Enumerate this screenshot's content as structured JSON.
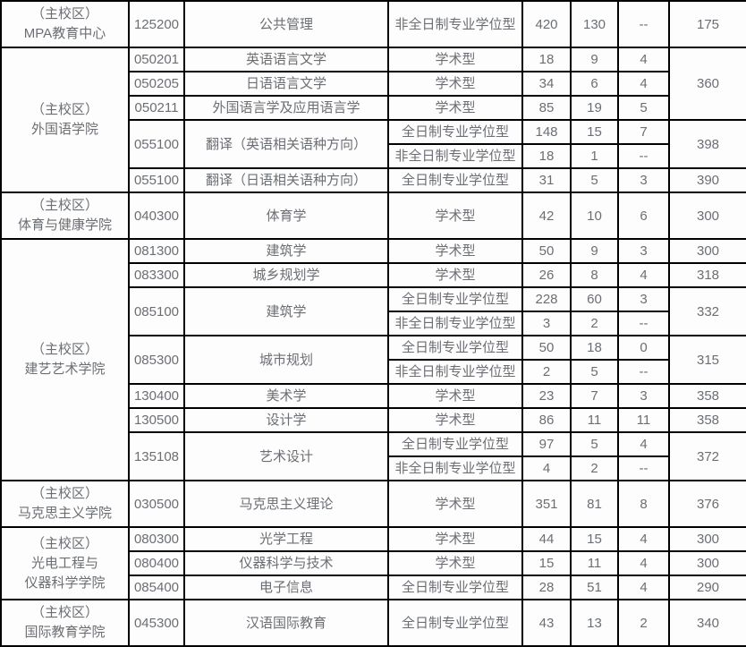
{
  "theme": {
    "text_color": "#6b6e73",
    "border_color": "#000000",
    "background": "#fdfdfd"
  },
  "table": {
    "rows": [
      [
        {
          "t": "college",
          "v": "（主校区）\nMPA教育中心"
        },
        {
          "t": "code",
          "v": "125200"
        },
        {
          "t": "major",
          "v": "公共管理"
        },
        {
          "t": "program",
          "v": "非全日制专业学位型"
        },
        {
          "t": "stat",
          "v": "420"
        },
        {
          "t": "stat",
          "v": "130"
        },
        {
          "t": "stat",
          "v": "--"
        },
        {
          "t": "score",
          "v": "175"
        }
      ],
      [
        {
          "t": "college",
          "v": "（主校区）\n外国语学院",
          "rs": 6
        },
        {
          "t": "code",
          "v": "050201"
        },
        {
          "t": "major",
          "v": "英语语言文学"
        },
        {
          "t": "program",
          "v": "学术型"
        },
        {
          "t": "stat",
          "v": "18"
        },
        {
          "t": "stat",
          "v": "9"
        },
        {
          "t": "stat",
          "v": "4"
        },
        {
          "t": "score",
          "v": "360",
          "rs": 3
        }
      ],
      [
        {
          "t": "code",
          "v": "050205"
        },
        {
          "t": "major",
          "v": "日语语言文学"
        },
        {
          "t": "program",
          "v": "学术型"
        },
        {
          "t": "stat",
          "v": "34"
        },
        {
          "t": "stat",
          "v": "6"
        },
        {
          "t": "stat",
          "v": "4"
        }
      ],
      [
        {
          "t": "code",
          "v": "050211"
        },
        {
          "t": "major",
          "v": "外国语言学及应用语言学"
        },
        {
          "t": "program",
          "v": "学术型"
        },
        {
          "t": "stat",
          "v": "85"
        },
        {
          "t": "stat",
          "v": "19"
        },
        {
          "t": "stat",
          "v": "5"
        }
      ],
      [
        {
          "t": "code",
          "v": "055100",
          "rs": 2
        },
        {
          "t": "major",
          "v": "翻译（英语相关语种方向）",
          "rs": 2
        },
        {
          "t": "program",
          "v": "全日制专业学位型"
        },
        {
          "t": "stat",
          "v": "148"
        },
        {
          "t": "stat",
          "v": "15"
        },
        {
          "t": "stat",
          "v": "7"
        },
        {
          "t": "score",
          "v": "398",
          "rs": 2
        }
      ],
      [
        {
          "t": "program",
          "v": "非全日制专业学位型"
        },
        {
          "t": "stat",
          "v": "18"
        },
        {
          "t": "stat",
          "v": "1"
        },
        {
          "t": "stat",
          "v": "--"
        }
      ],
      [
        {
          "t": "code",
          "v": "055100"
        },
        {
          "t": "major",
          "v": "翻译（日语相关语种方向）"
        },
        {
          "t": "program",
          "v": "全日制专业学位型"
        },
        {
          "t": "stat",
          "v": "31"
        },
        {
          "t": "stat",
          "v": "5"
        },
        {
          "t": "stat",
          "v": "3"
        },
        {
          "t": "score",
          "v": "390"
        }
      ],
      [
        {
          "t": "college",
          "v": "（主校区）\n体育与健康学院"
        },
        {
          "t": "code",
          "v": "040300"
        },
        {
          "t": "major",
          "v": "体育学"
        },
        {
          "t": "program",
          "v": "学术型"
        },
        {
          "t": "stat",
          "v": "42"
        },
        {
          "t": "stat",
          "v": "10"
        },
        {
          "t": "stat",
          "v": "6"
        },
        {
          "t": "score",
          "v": "300"
        }
      ],
      [
        {
          "t": "college",
          "v": "（主校区）\n建艺艺术学院",
          "rs": 10
        },
        {
          "t": "code",
          "v": "081300"
        },
        {
          "t": "major",
          "v": "建筑学"
        },
        {
          "t": "program",
          "v": "学术型"
        },
        {
          "t": "stat",
          "v": "50"
        },
        {
          "t": "stat",
          "v": "9"
        },
        {
          "t": "stat",
          "v": "3"
        },
        {
          "t": "score",
          "v": "300"
        }
      ],
      [
        {
          "t": "code",
          "v": "083300"
        },
        {
          "t": "major",
          "v": "城乡规划学"
        },
        {
          "t": "program",
          "v": "学术型"
        },
        {
          "t": "stat",
          "v": "26"
        },
        {
          "t": "stat",
          "v": "8"
        },
        {
          "t": "stat",
          "v": "4"
        },
        {
          "t": "score",
          "v": "318"
        }
      ],
      [
        {
          "t": "code",
          "v": "085100",
          "rs": 2
        },
        {
          "t": "major",
          "v": "建筑学",
          "rs": 2
        },
        {
          "t": "program",
          "v": "全日制专业学位型"
        },
        {
          "t": "stat",
          "v": "228"
        },
        {
          "t": "stat",
          "v": "60"
        },
        {
          "t": "stat",
          "v": "3"
        },
        {
          "t": "score",
          "v": "332",
          "rs": 2
        }
      ],
      [
        {
          "t": "program",
          "v": "非全日制专业学位型"
        },
        {
          "t": "stat",
          "v": "3"
        },
        {
          "t": "stat",
          "v": "2"
        },
        {
          "t": "stat",
          "v": "--"
        }
      ],
      [
        {
          "t": "code",
          "v": "085300",
          "rs": 2
        },
        {
          "t": "major",
          "v": "城市规划",
          "rs": 2
        },
        {
          "t": "program",
          "v": "全日制专业学位型"
        },
        {
          "t": "stat",
          "v": "50"
        },
        {
          "t": "stat",
          "v": "18"
        },
        {
          "t": "stat",
          "v": "0"
        },
        {
          "t": "score",
          "v": "315",
          "rs": 2
        }
      ],
      [
        {
          "t": "program",
          "v": "非全日制专业学位型"
        },
        {
          "t": "stat",
          "v": "2"
        },
        {
          "t": "stat",
          "v": "5"
        },
        {
          "t": "stat",
          "v": "--"
        }
      ],
      [
        {
          "t": "code",
          "v": "130400"
        },
        {
          "t": "major",
          "v": "美术学"
        },
        {
          "t": "program",
          "v": "学术型"
        },
        {
          "t": "stat",
          "v": "23"
        },
        {
          "t": "stat",
          "v": "7"
        },
        {
          "t": "stat",
          "v": "3"
        },
        {
          "t": "score",
          "v": "358"
        }
      ],
      [
        {
          "t": "code",
          "v": "130500"
        },
        {
          "t": "major",
          "v": "设计学"
        },
        {
          "t": "program",
          "v": "学术型"
        },
        {
          "t": "stat",
          "v": "86"
        },
        {
          "t": "stat",
          "v": "11"
        },
        {
          "t": "stat",
          "v": "11"
        },
        {
          "t": "score",
          "v": "358"
        }
      ],
      [
        {
          "t": "code",
          "v": "135108",
          "rs": 2
        },
        {
          "t": "major",
          "v": "艺术设计",
          "rs": 2
        },
        {
          "t": "program",
          "v": "全日制专业学位型"
        },
        {
          "t": "stat",
          "v": "97"
        },
        {
          "t": "stat",
          "v": "5"
        },
        {
          "t": "stat",
          "v": "4"
        },
        {
          "t": "score",
          "v": "372",
          "rs": 2
        }
      ],
      [
        {
          "t": "program",
          "v": "非全日制专业学位型"
        },
        {
          "t": "stat",
          "v": "4"
        },
        {
          "t": "stat",
          "v": "2"
        },
        {
          "t": "stat",
          "v": "--"
        }
      ],
      [
        {
          "t": "college",
          "v": "（主校区）\n马克思主义学院"
        },
        {
          "t": "code",
          "v": "030500"
        },
        {
          "t": "major",
          "v": "马克思主义理论"
        },
        {
          "t": "program",
          "v": "学术型"
        },
        {
          "t": "stat",
          "v": "351"
        },
        {
          "t": "stat",
          "v": "81"
        },
        {
          "t": "stat",
          "v": "8"
        },
        {
          "t": "score",
          "v": "376"
        }
      ],
      [
        {
          "t": "college",
          "v": "（主校区）\n光电工程与\n仪器科学学院",
          "rs": 3
        },
        {
          "t": "code",
          "v": "080300"
        },
        {
          "t": "major",
          "v": "光学工程"
        },
        {
          "t": "program",
          "v": "学术型"
        },
        {
          "t": "stat",
          "v": "44"
        },
        {
          "t": "stat",
          "v": "15"
        },
        {
          "t": "stat",
          "v": "4"
        },
        {
          "t": "score",
          "v": "300"
        }
      ],
      [
        {
          "t": "code",
          "v": "080400"
        },
        {
          "t": "major",
          "v": "仪器科学与技术"
        },
        {
          "t": "program",
          "v": "学术型"
        },
        {
          "t": "stat",
          "v": "15"
        },
        {
          "t": "stat",
          "v": "11"
        },
        {
          "t": "stat",
          "v": "4"
        },
        {
          "t": "score",
          "v": "300"
        }
      ],
      [
        {
          "t": "code",
          "v": "085400"
        },
        {
          "t": "major",
          "v": "电子信息"
        },
        {
          "t": "program",
          "v": "全日制专业学位型"
        },
        {
          "t": "stat",
          "v": "28"
        },
        {
          "t": "stat",
          "v": "51"
        },
        {
          "t": "stat",
          "v": "4"
        },
        {
          "t": "score",
          "v": "290"
        }
      ],
      [
        {
          "t": "college",
          "v": "（主校区）\n国际教育学院"
        },
        {
          "t": "code",
          "v": "045300"
        },
        {
          "t": "major",
          "v": "汉语国际教育"
        },
        {
          "t": "program",
          "v": "全日制专业学位型"
        },
        {
          "t": "stat",
          "v": "43"
        },
        {
          "t": "stat",
          "v": "13"
        },
        {
          "t": "stat",
          "v": "2"
        },
        {
          "t": "score",
          "v": "340"
        }
      ]
    ]
  }
}
